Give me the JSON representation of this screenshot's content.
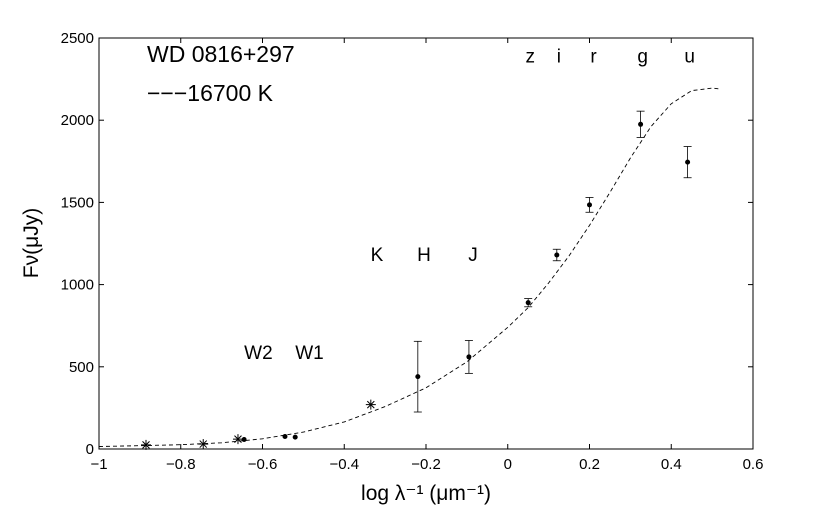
{
  "chart_data": {
    "type": "scatter",
    "xlabel": "log λ⁻¹ (μm⁻¹)",
    "ylabel": "Fν(μJy)",
    "xlim": [
      -1,
      0.6
    ],
    "ylim": [
      0,
      2500
    ],
    "x_ticks": [
      -1,
      -0.8,
      -0.6,
      -0.4,
      -0.2,
      0,
      0.2,
      0.4,
      0.6
    ],
    "x_tick_labels": [
      "−1",
      "−0.8",
      "−0.6",
      "−0.4",
      "−0.2",
      "0",
      "0.2",
      "0.4",
      "0.6"
    ],
    "y_ticks": [
      0,
      500,
      1000,
      1500,
      2000,
      2500
    ],
    "y_tick_labels": [
      "0",
      "500",
      "1000",
      "1500",
      "2000",
      "2500"
    ],
    "grid": false,
    "title_lines": [
      "WD 0816+297",
      "−−−16700  K"
    ],
    "series": [
      {
        "marker": "point-with-errorbar",
        "points": [
          {
            "x": -0.645,
            "y": 58,
            "err": 0
          },
          {
            "x": -0.545,
            "y": 76,
            "err": 0
          },
          {
            "x": -0.52,
            "y": 72,
            "err": 0
          },
          {
            "x": -0.22,
            "y": 440,
            "err": 215
          },
          {
            "x": -0.095,
            "y": 560,
            "err": 100
          },
          {
            "x": 0.05,
            "y": 890,
            "err": 25
          },
          {
            "x": 0.12,
            "y": 1180,
            "err": 35
          },
          {
            "x": 0.2,
            "y": 1485,
            "err": 45
          },
          {
            "x": 0.325,
            "y": 1975,
            "err": 80
          },
          {
            "x": 0.44,
            "y": 1745,
            "err": 95
          }
        ]
      },
      {
        "marker": "star",
        "points": [
          {
            "x": -0.885,
            "y": 25
          },
          {
            "x": -0.745,
            "y": 30
          },
          {
            "x": -0.66,
            "y": 60
          },
          {
            "x": -0.335,
            "y": 270
          }
        ]
      },
      {
        "marker": "dashed-line",
        "x": [
          -1.0,
          -0.9,
          -0.8,
          -0.7,
          -0.6,
          -0.5,
          -0.4,
          -0.3,
          -0.2,
          -0.1,
          0.0,
          0.05,
          0.1,
          0.15,
          0.2,
          0.25,
          0.3,
          0.35,
          0.4,
          0.45,
          0.5,
          0.52
        ],
        "y": [
          15,
          20,
          26,
          38,
          62,
          103,
          165,
          258,
          372,
          530,
          740,
          860,
          1010,
          1175,
          1360,
          1560,
          1770,
          1960,
          2100,
          2180,
          2195,
          2190
        ]
      }
    ],
    "annotations": [
      {
        "text": "z",
        "x": 0.055,
        "y": 2395
      },
      {
        "text": "i",
        "x": 0.125,
        "y": 2395
      },
      {
        "text": "r",
        "x": 0.21,
        "y": 2395
      },
      {
        "text": "g",
        "x": 0.33,
        "y": 2395
      },
      {
        "text": "u",
        "x": 0.445,
        "y": 2395
      },
      {
        "text": "K",
        "x": -0.32,
        "y": 1185
      },
      {
        "text": "H",
        "x": -0.205,
        "y": 1185
      },
      {
        "text": "J",
        "x": -0.085,
        "y": 1185
      },
      {
        "text": "W2",
        "x": -0.61,
        "y": 590
      },
      {
        "text": "W1",
        "x": -0.485,
        "y": 590
      }
    ]
  }
}
